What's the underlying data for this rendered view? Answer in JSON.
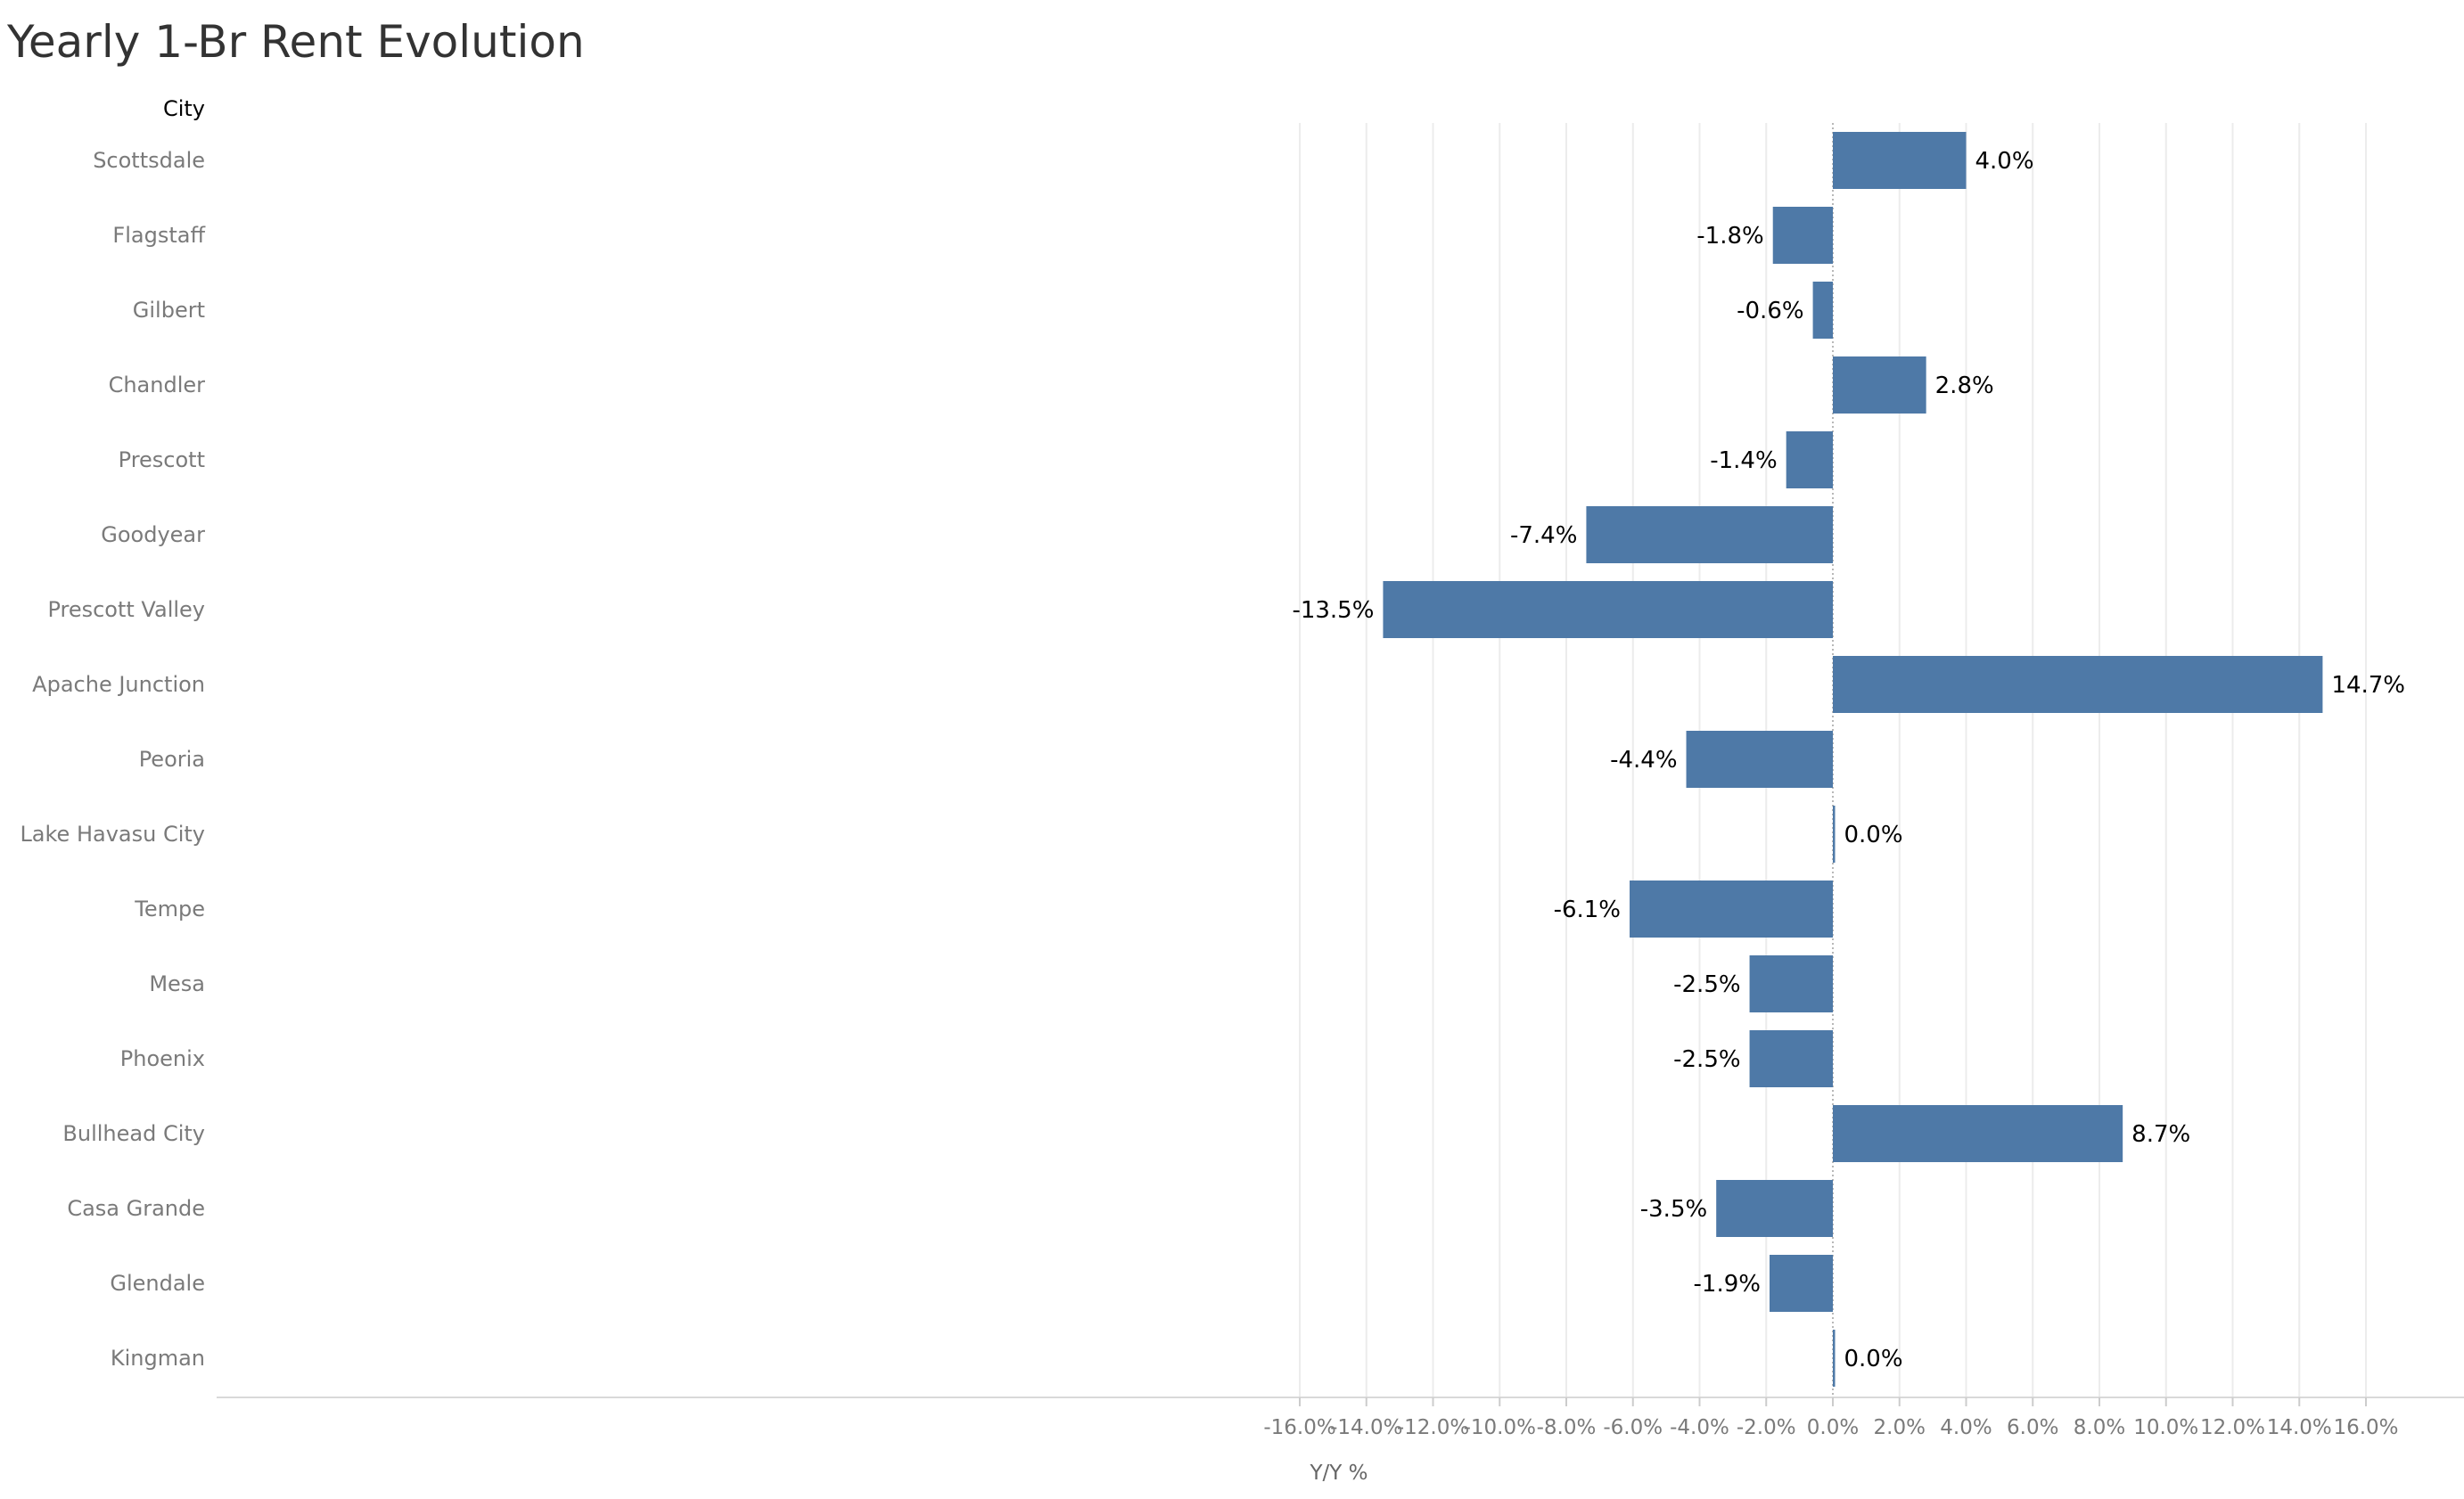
{
  "chart_data": {
    "type": "bar",
    "orientation": "horizontal",
    "title": "Yearly 1-Br Rent Evolution",
    "row_header": "City",
    "xlabel": "Y/Y %",
    "ylabel": "",
    "xlim": [
      -16,
      16
    ],
    "xticks": [
      -16,
      -14,
      -12,
      -10,
      -8,
      -6,
      -4,
      -2,
      0,
      2,
      4,
      6,
      8,
      10,
      12,
      14,
      16
    ],
    "tick_format": "percent_1dp",
    "grid": "vertical",
    "bar_color": "#4e79a7",
    "categories": [
      "Scottsdale",
      "Flagstaff",
      "Gilbert",
      "Chandler",
      "Prescott",
      "Goodyear",
      "Prescott Valley",
      "Apache Junction",
      "Peoria",
      "Lake Havasu City",
      "Tempe",
      "Mesa",
      "Phoenix",
      "Bullhead City",
      "Casa Grande",
      "Glendale",
      "Kingman"
    ],
    "values": [
      4.0,
      -1.8,
      -0.6,
      2.8,
      -1.4,
      -7.4,
      -13.5,
      14.7,
      -4.4,
      0.0,
      -6.1,
      -2.5,
      -2.5,
      8.7,
      -3.5,
      -1.9,
      0.0
    ],
    "data_labels": [
      "4.0%",
      "-1.8%",
      "-0.6%",
      "2.8%",
      "-1.4%",
      "-7.4%",
      "-13.5%",
      "14.7%",
      "-4.4%",
      "0.0%",
      "-6.1%",
      "-2.5%",
      "-2.5%",
      "8.7%",
      "-3.5%",
      "-1.9%",
      "0.0%"
    ]
  }
}
